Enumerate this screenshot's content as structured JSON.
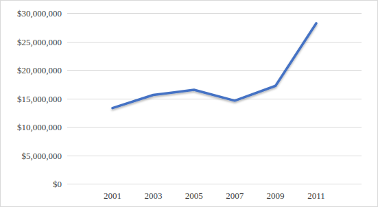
{
  "chart_data": {
    "type": "line",
    "categories": [
      "2001",
      "2003",
      "2005",
      "2007",
      "2009",
      "2011"
    ],
    "values": [
      13300000,
      15600000,
      16500000,
      14600000,
      17200000,
      28200000
    ],
    "color": "#4472c4",
    "ylim": [
      0,
      30000000
    ],
    "yticks": [
      {
        "value": 0,
        "label": "$0"
      },
      {
        "value": 5000000,
        "label": "$5,000,000"
      },
      {
        "value": 10000000,
        "label": "$10,000,000"
      },
      {
        "value": 15000000,
        "label": "$15,000,000"
      },
      {
        "value": 20000000,
        "label": "$20,000,000"
      },
      {
        "value": 25000000,
        "label": "$25,000,000"
      },
      {
        "value": 30000000,
        "label": "$30,000,000"
      }
    ],
    "grid": true
  }
}
